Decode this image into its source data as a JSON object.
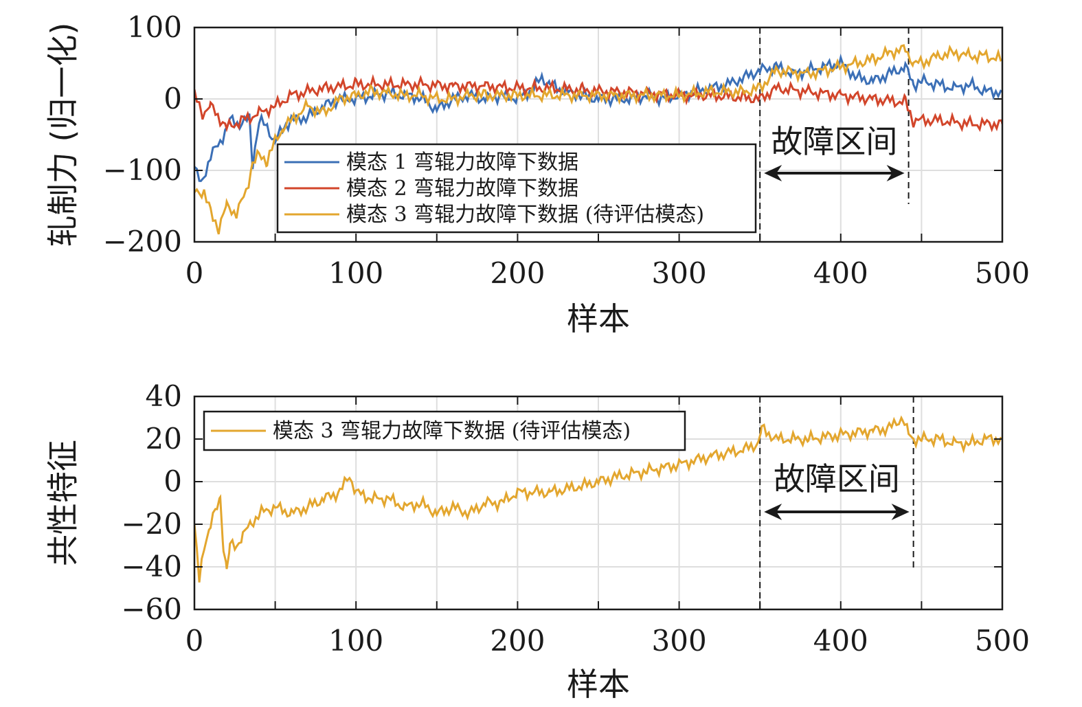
{
  "colors": {
    "series1": "#3B6FB6",
    "series2": "#D2452A",
    "series3": "#E3A62E",
    "grid": "#dedede",
    "axis": "#1a1a1a"
  },
  "chart_data": [
    {
      "type": "line",
      "ylabel": "轧制力 (归一化)",
      "xlabel": "样本",
      "xlim": [
        0,
        500
      ],
      "ylim": [
        -200,
        100
      ],
      "xticks": [
        0,
        100,
        200,
        300,
        400,
        500
      ],
      "yticks": [
        -200,
        -100,
        0,
        100
      ],
      "ytick_labels": [
        "−200",
        "−100",
        "0",
        "100"
      ],
      "grid": true,
      "legend_position": "center",
      "annotation": {
        "text": "故障区间",
        "x_start": 350,
        "x_end": 442
      },
      "series": [
        {
          "name": "模态 1 弯辊力故障下数据",
          "color_key": "series1",
          "x": [
            0,
            4,
            10,
            16,
            22,
            28,
            34,
            36,
            40,
            45,
            50,
            55,
            60,
            70,
            80,
            90,
            100,
            110,
            120,
            130,
            140,
            150,
            160,
            170,
            180,
            190,
            200,
            210,
            215,
            220,
            230,
            240,
            250,
            260,
            270,
            280,
            290,
            300,
            310,
            320,
            330,
            340,
            350,
            360,
            370,
            380,
            390,
            400,
            410,
            420,
            430,
            440,
            445,
            450,
            460,
            470,
            480,
            490,
            500
          ],
          "y": [
            -95,
            -120,
            -80,
            -60,
            -30,
            -35,
            -28,
            -90,
            -30,
            -40,
            -60,
            -40,
            -30,
            -25,
            -10,
            0,
            0,
            5,
            8,
            5,
            2,
            -15,
            0,
            5,
            0,
            5,
            0,
            15,
            30,
            20,
            10,
            5,
            0,
            0,
            0,
            5,
            0,
            5,
            10,
            15,
            20,
            30,
            40,
            45,
            35,
            40,
            45,
            50,
            30,
            25,
            35,
            45,
            20,
            25,
            20,
            15,
            20,
            10,
            10
          ]
        },
        {
          "name": "模态 2 弯辊力故障下数据",
          "color_key": "series2",
          "x": [
            0,
            5,
            10,
            20,
            30,
            40,
            50,
            60,
            70,
            80,
            100,
            120,
            140,
            160,
            180,
            200,
            220,
            240,
            260,
            280,
            300,
            320,
            340,
            350,
            360,
            380,
            400,
            420,
            440,
            445,
            460,
            480,
            500
          ],
          "y": [
            5,
            -20,
            -10,
            -40,
            -30,
            -20,
            -10,
            5,
            10,
            15,
            20,
            20,
            20,
            18,
            18,
            15,
            15,
            12,
            10,
            8,
            5,
            5,
            2,
            0,
            15,
            10,
            5,
            0,
            -5,
            -30,
            -30,
            -35,
            -35
          ]
        },
        {
          "name": "模态 3 弯辊力故障下数据 (待评估模态)",
          "color_key": "series3",
          "x": [
            0,
            6,
            10,
            15,
            20,
            26,
            32,
            36,
            40,
            45,
            50,
            55,
            60,
            70,
            80,
            90,
            100,
            110,
            120,
            130,
            140,
            150,
            160,
            170,
            180,
            190,
            200,
            220,
            240,
            260,
            280,
            300,
            320,
            340,
            350,
            360,
            380,
            400,
            420,
            430,
            440,
            445,
            450,
            460,
            470,
            480,
            490,
            500
          ],
          "y": [
            -130,
            -130,
            -160,
            -180,
            -150,
            -160,
            -130,
            -90,
            -80,
            -85,
            -60,
            -40,
            -30,
            -10,
            -20,
            0,
            5,
            10,
            8,
            5,
            5,
            0,
            0,
            5,
            5,
            5,
            5,
            5,
            5,
            5,
            5,
            5,
            10,
            10,
            15,
            40,
            35,
            45,
            55,
            65,
            70,
            50,
            50,
            60,
            65,
            60,
            60,
            55
          ]
        }
      ]
    },
    {
      "type": "line",
      "ylabel": "共性特征",
      "xlabel": "样本",
      "xlim": [
        0,
        500
      ],
      "ylim": [
        -60,
        40
      ],
      "xticks": [
        0,
        100,
        200,
        300,
        400,
        500
      ],
      "yticks": [
        -60,
        -40,
        -20,
        0,
        20,
        40
      ],
      "ytick_labels": [
        "−60",
        "−40",
        "−20",
        "0",
        "20",
        "40"
      ],
      "grid": true,
      "legend_position": "top-left",
      "annotation": {
        "text": "故障区间",
        "x_start": 350,
        "x_end": 445
      },
      "series": [
        {
          "name": "模态 3 弯辊力故障下数据 (待评估模态)",
          "color_key": "series3",
          "x": [
            0,
            3,
            6,
            10,
            14,
            16,
            18,
            20,
            22,
            26,
            30,
            35,
            40,
            50,
            60,
            70,
            80,
            90,
            96,
            100,
            110,
            120,
            130,
            140,
            150,
            160,
            170,
            180,
            190,
            200,
            220,
            240,
            250,
            260,
            280,
            300,
            320,
            340,
            349,
            351,
            360,
            380,
            400,
            420,
            430,
            438,
            442,
            445,
            450,
            460,
            470,
            480,
            490,
            500
          ],
          "y": [
            -20,
            -47,
            -30,
            -20,
            -12,
            -8,
            -30,
            -42,
            -30,
            -30,
            -25,
            -20,
            -15,
            -12,
            -15,
            -12,
            -8,
            -5,
            3,
            -5,
            -8,
            -8,
            -12,
            -10,
            -15,
            -12,
            -15,
            -10,
            -10,
            -5,
            -5,
            -2,
            0,
            2,
            5,
            8,
            12,
            15,
            18,
            25,
            20,
            20,
            22,
            24,
            25,
            30,
            22,
            20,
            20,
            20,
            18,
            18,
            20,
            20
          ]
        }
      ]
    }
  ]
}
